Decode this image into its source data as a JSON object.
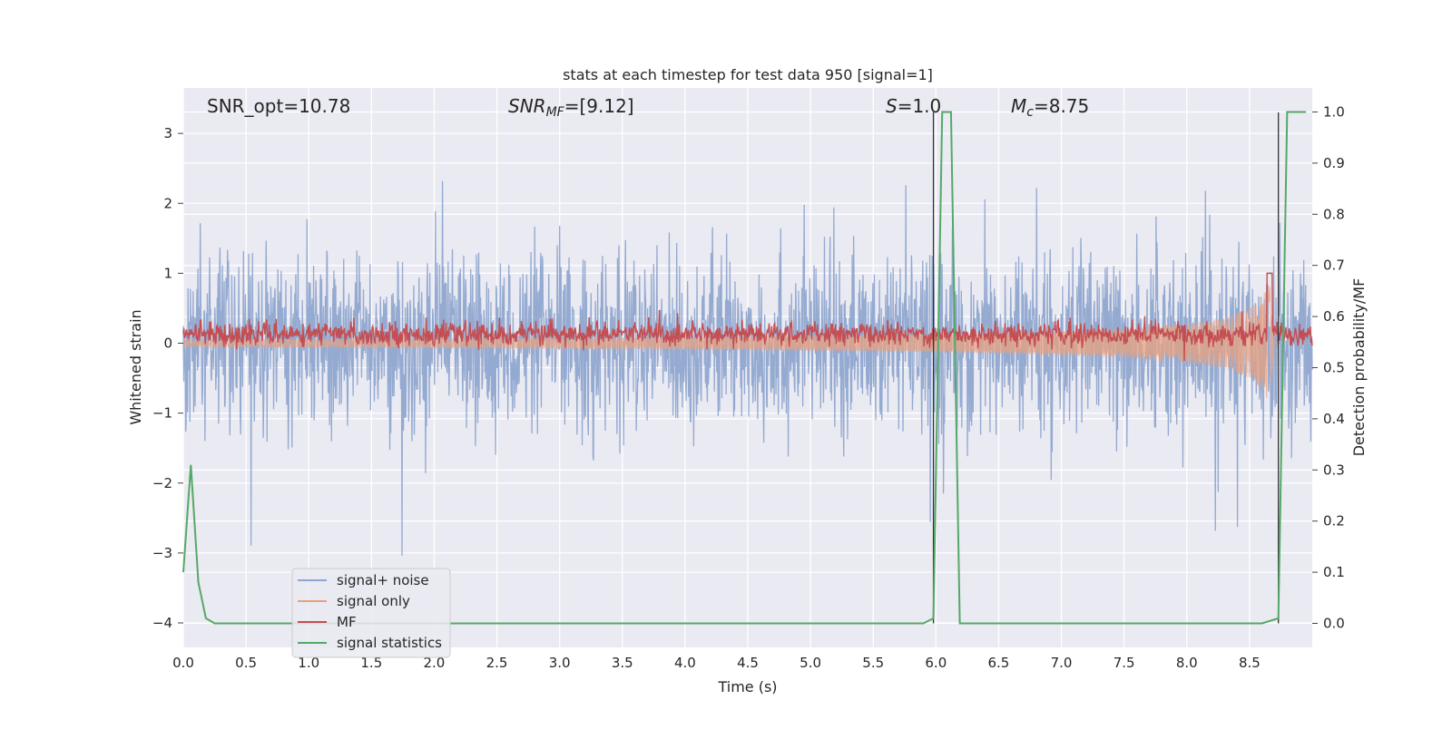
{
  "chart_data": {
    "type": "line",
    "title": "stats at each timestep for test data 950 [signal=1]",
    "xlabel": "Time (s)",
    "ylabel_left": "Whitened strain",
    "ylabel_right": "Detection probability/MF",
    "xlim": [
      0.0,
      9.0
    ],
    "ylim_left": [
      -4.35,
      3.65
    ],
    "ylim_right": [
      -0.047,
      1.047
    ],
    "x_ticks": [
      "0.0",
      "0.5",
      "1.0",
      "1.5",
      "2.0",
      "2.5",
      "3.0",
      "3.5",
      "4.0",
      "4.5",
      "5.0",
      "5.5",
      "6.0",
      "6.5",
      "7.0",
      "7.5",
      "8.0",
      "8.5"
    ],
    "y_ticks_left": [
      "3",
      "2",
      "1",
      "0",
      "−1",
      "−2",
      "−3",
      "−4"
    ],
    "y_ticks_right": [
      "1.0",
      "0.9",
      "0.8",
      "0.7",
      "0.6",
      "0.5",
      "0.4",
      "0.3",
      "0.2",
      "0.1",
      "0.0"
    ],
    "grid": true,
    "legend_position": "lower-left",
    "annotations": {
      "snr_opt": "SNR_opt=10.78",
      "snr_mf_main": "SNR",
      "snr_mf_sub": "MF",
      "snr_mf_value": "=[9.12]",
      "s_main": "S",
      "s_value": "=1.0",
      "mc_main": "M",
      "mc_sub": "c",
      "mc_value": "=8.75"
    },
    "series": [
      {
        "name": "signal+ noise",
        "color": "#8fa6cf",
        "description_noise_std": 0.62
      },
      {
        "name": "signal only",
        "color": "#e8a07f",
        "envelope": {
          "t": [
            0,
            1,
            2,
            3,
            4,
            5,
            6,
            7,
            7.5,
            8,
            8.3,
            8.5,
            8.6,
            8.66,
            8.7
          ],
          "amp": [
            0.05,
            0.06,
            0.07,
            0.08,
            0.09,
            0.11,
            0.13,
            0.17,
            0.21,
            0.28,
            0.36,
            0.5,
            0.65,
            0.9,
            0.0
          ]
        }
      },
      {
        "name": "MF",
        "color": "#c44e52"
      },
      {
        "name": "signal statistics",
        "color": "#55a868",
        "x": [
          0.0,
          0.06,
          0.12,
          0.18,
          0.25,
          0.4,
          5.9,
          5.98,
          6.05,
          6.12,
          6.19,
          6.3,
          8.6,
          8.73,
          8.8,
          8.9,
          8.95
        ],
        "y": [
          0.1,
          0.31,
          0.08,
          0.01,
          0.0,
          0.0,
          0.0,
          0.01,
          1.0,
          1.0,
          0.0,
          0.0,
          0.0,
          0.01,
          1.0,
          1.0,
          1.0
        ]
      }
    ],
    "vertical_markers_s": [
      5.98,
      8.73
    ]
  }
}
